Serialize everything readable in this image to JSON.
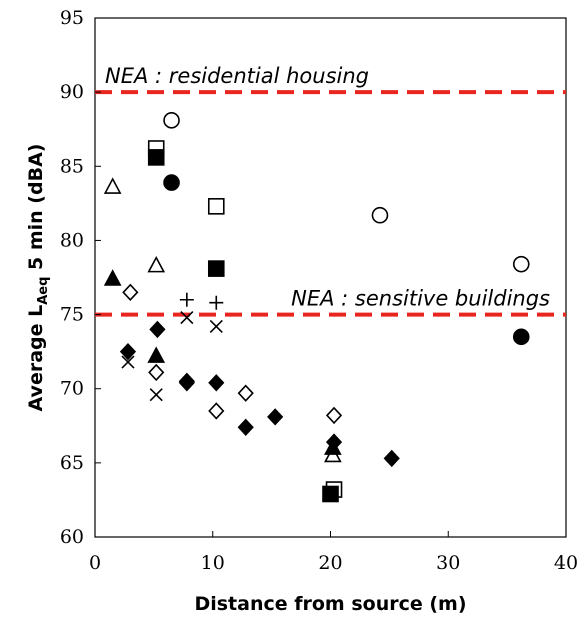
{
  "chart_data": {
    "type": "scatter",
    "xlabel": "Distance from source (m)",
    "ylabel": {
      "prefix": "Average L",
      "sub": "Aeq",
      "suffix": " 5 min (dBA)"
    },
    "xlim": [
      0,
      40
    ],
    "ylim": [
      60,
      95
    ],
    "x_ticks": [
      0,
      10,
      20,
      30,
      40
    ],
    "y_ticks": [
      60,
      65,
      70,
      75,
      80,
      85,
      90,
      95
    ],
    "grid": false,
    "reference_lines": [
      {
        "label": "NEA : residential housing",
        "y": 90,
        "color": "#e8261f"
      },
      {
        "label": "NEA : sensitive buildings",
        "y": 75,
        "color": "#e8261f"
      }
    ],
    "series": [
      {
        "marker": "circle-open",
        "points": [
          [
            6.5,
            88.1
          ],
          [
            24.2,
            81.7
          ],
          [
            36.2,
            78.4
          ]
        ]
      },
      {
        "marker": "circle-filled",
        "points": [
          [
            6.5,
            83.9
          ],
          [
            36.2,
            73.5
          ]
        ]
      },
      {
        "marker": "square-open",
        "points": [
          [
            5.2,
            86.2
          ],
          [
            10.3,
            82.3
          ],
          [
            20.3,
            63.2
          ]
        ]
      },
      {
        "marker": "square-filled",
        "points": [
          [
            5.2,
            85.6
          ],
          [
            10.3,
            78.1
          ],
          [
            20.0,
            62.9
          ]
        ]
      },
      {
        "marker": "triangle-open",
        "points": [
          [
            1.5,
            83.6
          ],
          [
            5.2,
            78.3
          ],
          [
            20.2,
            65.5
          ]
        ]
      },
      {
        "marker": "triangle-filled",
        "points": [
          [
            1.5,
            77.4
          ],
          [
            5.2,
            72.2
          ],
          [
            20.2,
            66.0
          ]
        ]
      },
      {
        "marker": "diamond-open",
        "points": [
          [
            3.0,
            76.5
          ],
          [
            5.2,
            71.1
          ],
          [
            7.8,
            70.5
          ],
          [
            10.3,
            68.5
          ],
          [
            12.8,
            69.7
          ],
          [
            20.3,
            68.2
          ]
        ]
      },
      {
        "marker": "diamond-filled",
        "points": [
          [
            2.8,
            72.5
          ],
          [
            5.3,
            74.0
          ],
          [
            7.8,
            70.4
          ],
          [
            10.3,
            70.4
          ],
          [
            12.8,
            67.4
          ],
          [
            15.3,
            68.1
          ],
          [
            20.3,
            66.4
          ],
          [
            25.2,
            65.3
          ]
        ]
      },
      {
        "marker": "cross",
        "points": [
          [
            2.8,
            71.8
          ],
          [
            5.2,
            69.6
          ],
          [
            7.8,
            74.8
          ],
          [
            10.3,
            74.2
          ]
        ]
      },
      {
        "marker": "plus",
        "points": [
          [
            7.8,
            76.0
          ],
          [
            10.3,
            75.8
          ]
        ]
      }
    ]
  }
}
